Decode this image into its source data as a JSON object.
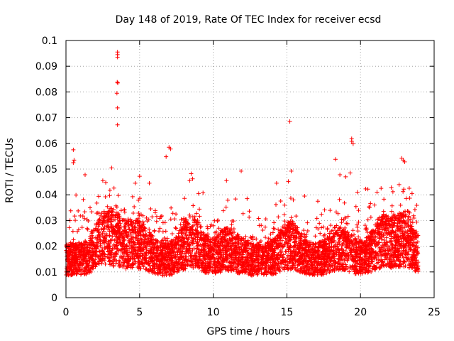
{
  "chart_data": {
    "type": "scatter",
    "title": "Day 148 of 2019, Rate Of TEC Index for receiver ecsd",
    "xlabel": "GPS time / hours",
    "ylabel": "ROTI / TECUs",
    "xlim": [
      0,
      25
    ],
    "ylim": [
      0,
      0.1
    ],
    "xticks": [
      "0",
      "5",
      "10",
      "15",
      "20",
      "25"
    ],
    "yticks": [
      "0",
      "0.01",
      "0.02",
      "0.03",
      "0.04",
      "0.05",
      "0.06",
      "0.07",
      "0.08",
      "0.09",
      "0.1"
    ],
    "grid": true,
    "marker": "+",
    "color": "#ff0000",
    "series": [
      {
        "name": "ROTI",
        "x": [
          3.5,
          3.5,
          3.5,
          3.48,
          3.52,
          3.46,
          3.5,
          3.5,
          15.2,
          19.4,
          19.4,
          19.5,
          0.5,
          0.55,
          0.5,
          7.0,
          7.1,
          6.8,
          8.5,
          8.6,
          18.3,
          22.8,
          22.9,
          23.0,
          3.1,
          11.9,
          15.3,
          19.3,
          18.6,
          2.5,
          2.7,
          1.3,
          8.4,
          5.0,
          9.0,
          10.9,
          14.3,
          15.1,
          21.4,
          23.5,
          4.7,
          12.3,
          16.2,
          20.5,
          17.1,
          22.2
        ],
        "y": [
          0.0955,
          0.0945,
          0.0935,
          0.0838,
          0.0835,
          0.0795,
          0.0738,
          0.0672,
          0.0685,
          0.0618,
          0.0608,
          0.0598,
          0.0575,
          0.0535,
          0.0525,
          0.0585,
          0.0578,
          0.0548,
          0.0482,
          0.0462,
          0.0538,
          0.0542,
          0.0535,
          0.0528,
          0.0505,
          0.0492,
          0.0492,
          0.0485,
          0.0478,
          0.0455,
          0.0448,
          0.0478,
          0.0455,
          0.0472,
          0.0405,
          0.0455,
          0.0445,
          0.0452,
          0.0425,
          0.0405,
          0.0445,
          0.0385,
          0.0395,
          0.0422,
          0.0375,
          0.0412
        ]
      }
    ]
  }
}
